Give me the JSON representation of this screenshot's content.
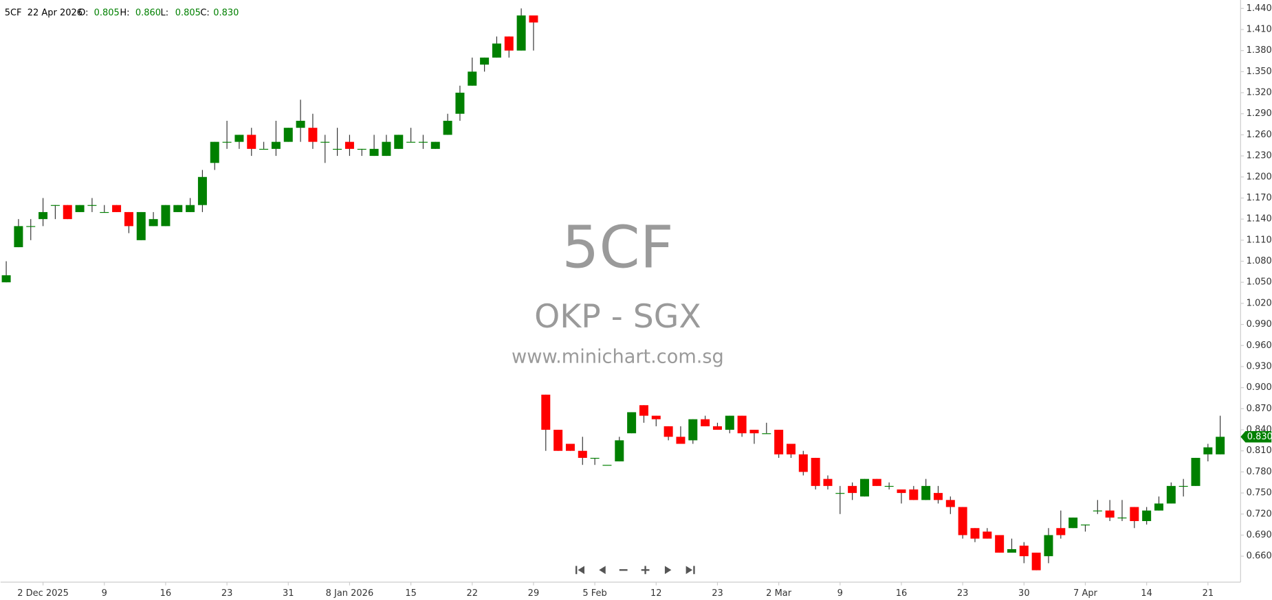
{
  "chart_data": {
    "type": "candlestick",
    "header": {
      "symbol": "5CF",
      "date": "22 Apr 2026",
      "open_label": "O:",
      "open": "0.805",
      "high_label": "H:",
      "high": "0.860",
      "low_label": "L:",
      "low": "0.805",
      "close_label": "C:",
      "close": "0.830"
    },
    "watermark": [
      "5CF",
      "OKP - SGX",
      "www.minichart.com.sg"
    ],
    "categories": [
      null,
      null,
      null,
      "2 Dec 2025",
      null,
      null,
      null,
      null,
      "9",
      null,
      null,
      null,
      null,
      "16",
      null,
      null,
      null,
      null,
      "23",
      null,
      null,
      null,
      null,
      "31",
      null,
      null,
      null,
      null,
      "8 Jan 2026",
      null,
      null,
      null,
      null,
      "15",
      null,
      null,
      null,
      null,
      "22",
      null,
      null,
      null,
      null,
      "29",
      null,
      null,
      null,
      null,
      "5 Feb",
      null,
      null,
      null,
      null,
      "12",
      null,
      null,
      null,
      null,
      "23",
      null,
      null,
      null,
      null,
      "2 Mar",
      null,
      null,
      null,
      null,
      "9",
      null,
      null,
      null,
      null,
      "16",
      null,
      null,
      null,
      null,
      "23",
      null,
      null,
      null,
      null,
      "30",
      null,
      null,
      null,
      null,
      "7 Apr",
      null,
      null,
      null,
      null,
      "14",
      null,
      null,
      null,
      null,
      "21",
      null
    ],
    "open": [
      1.05,
      1.1,
      1.13,
      1.14,
      1.16,
      1.16,
      1.15,
      1.16,
      1.15,
      1.16,
      1.15,
      1.11,
      1.13,
      1.13,
      1.15,
      1.15,
      1.16,
      1.22,
      1.25,
      1.25,
      1.26,
      1.24,
      1.24,
      1.25,
      1.27,
      1.27,
      1.25,
      1.24,
      1.25,
      1.24,
      1.23,
      1.23,
      1.24,
      1.25,
      1.25,
      1.24,
      1.26,
      1.29,
      1.33,
      1.36,
      1.37,
      1.4,
      1.38,
      1.43,
      0.89,
      0.84,
      0.82,
      0.81,
      0.8,
      0.79,
      0.795,
      0.835,
      0.875,
      0.86,
      0.845,
      0.83,
      0.825,
      0.855,
      0.845,
      0.84,
      0.86,
      0.84,
      0.835,
      0.84,
      0.82,
      0.805,
      0.8,
      0.77,
      0.75,
      0.76,
      0.745,
      0.77,
      0.76,
      0.755,
      0.755,
      0.74,
      0.75,
      0.74,
      0.73,
      0.7,
      0.695,
      0.69,
      0.665,
      0.675,
      0.665,
      0.66,
      0.7,
      0.7,
      0.705,
      0.725,
      0.725,
      0.715,
      0.73,
      0.71,
      0.725,
      0.735,
      0.76,
      0.76,
      0.805,
      0.805
    ],
    "high": [
      1.08,
      1.14,
      1.14,
      1.17,
      1.16,
      1.16,
      1.16,
      1.17,
      1.16,
      1.16,
      1.15,
      1.15,
      1.15,
      1.16,
      1.16,
      1.17,
      1.21,
      1.25,
      1.28,
      1.26,
      1.27,
      1.25,
      1.28,
      1.27,
      1.31,
      1.29,
      1.26,
      1.27,
      1.26,
      1.24,
      1.26,
      1.26,
      1.26,
      1.27,
      1.26,
      1.25,
      1.29,
      1.33,
      1.37,
      1.37,
      1.4,
      1.4,
      1.44,
      1.43,
      0.89,
      0.84,
      0.82,
      0.83,
      0.8,
      0.79,
      0.83,
      0.865,
      0.875,
      0.86,
      0.845,
      0.845,
      0.855,
      0.86,
      0.85,
      0.86,
      0.86,
      0.84,
      0.85,
      0.84,
      0.82,
      0.81,
      0.8,
      0.775,
      0.76,
      0.765,
      0.77,
      0.77,
      0.765,
      0.755,
      0.76,
      0.77,
      0.76,
      0.745,
      0.73,
      0.7,
      0.7,
      0.69,
      0.685,
      0.68,
      0.665,
      0.7,
      0.725,
      0.715,
      0.705,
      0.74,
      0.74,
      0.74,
      0.73,
      0.73,
      0.745,
      0.765,
      0.77,
      0.8,
      0.82,
      0.86
    ],
    "low": [
      1.05,
      1.1,
      1.11,
      1.13,
      1.14,
      1.14,
      1.15,
      1.15,
      1.15,
      1.15,
      1.12,
      1.11,
      1.13,
      1.13,
      1.15,
      1.15,
      1.15,
      1.21,
      1.24,
      1.24,
      1.23,
      1.24,
      1.23,
      1.25,
      1.25,
      1.24,
      1.22,
      1.23,
      1.23,
      1.23,
      1.23,
      1.23,
      1.24,
      1.25,
      1.24,
      1.24,
      1.26,
      1.28,
      1.33,
      1.35,
      1.37,
      1.37,
      1.38,
      1.38,
      0.81,
      0.81,
      0.81,
      0.79,
      0.79,
      0.79,
      0.795,
      0.835,
      0.85,
      0.845,
      0.825,
      0.82,
      0.82,
      0.845,
      0.84,
      0.835,
      0.83,
      0.82,
      0.835,
      0.8,
      0.8,
      0.775,
      0.755,
      0.755,
      0.72,
      0.74,
      0.745,
      0.76,
      0.755,
      0.735,
      0.74,
      0.74,
      0.735,
      0.72,
      0.685,
      0.68,
      0.685,
      0.665,
      0.665,
      0.65,
      0.64,
      0.65,
      0.685,
      0.7,
      0.695,
      0.72,
      0.71,
      0.71,
      0.7,
      0.705,
      0.725,
      0.735,
      0.745,
      0.76,
      0.795,
      0.805
    ],
    "close": [
      1.06,
      1.13,
      1.13,
      1.15,
      1.16,
      1.14,
      1.16,
      1.16,
      1.15,
      1.15,
      1.13,
      1.15,
      1.14,
      1.16,
      1.16,
      1.16,
      1.2,
      1.25,
      1.25,
      1.26,
      1.24,
      1.24,
      1.25,
      1.27,
      1.28,
      1.25,
      1.25,
      1.24,
      1.24,
      1.24,
      1.24,
      1.25,
      1.26,
      1.25,
      1.25,
      1.25,
      1.28,
      1.32,
      1.35,
      1.37,
      1.39,
      1.38,
      1.43,
      1.42,
      0.84,
      0.81,
      0.81,
      0.8,
      0.8,
      0.79,
      0.825,
      0.865,
      0.86,
      0.855,
      0.83,
      0.82,
      0.855,
      0.845,
      0.84,
      0.86,
      0.835,
      0.835,
      0.835,
      0.805,
      0.805,
      0.78,
      0.76,
      0.76,
      0.75,
      0.75,
      0.77,
      0.76,
      0.76,
      0.75,
      0.74,
      0.76,
      0.74,
      0.73,
      0.69,
      0.685,
      0.685,
      0.665,
      0.67,
      0.66,
      0.64,
      0.69,
      0.69,
      0.715,
      0.705,
      0.725,
      0.715,
      0.715,
      0.71,
      0.725,
      0.735,
      0.76,
      0.76,
      0.8,
      0.815,
      0.83
    ],
    "up_color": "#008000",
    "down_color": "#ff0000",
    "ylim": [
      0.623,
      1.452
    ],
    "yticks": [
      {
        "value": 0.66,
        "label": "0.660"
      },
      {
        "value": 0.69,
        "label": "0.690"
      },
      {
        "value": 0.72,
        "label": "0.720"
      },
      {
        "value": 0.75,
        "label": "0.750"
      },
      {
        "value": 0.78,
        "label": "0.780"
      },
      {
        "value": 0.81,
        "label": "0.810"
      },
      {
        "value": 0.84,
        "label": "0.840"
      },
      {
        "value": 0.87,
        "label": "0.870"
      },
      {
        "value": 0.9,
        "label": "0.900"
      },
      {
        "value": 0.93,
        "label": "0.930"
      },
      {
        "value": 0.96,
        "label": "0.960"
      },
      {
        "value": 0.99,
        "label": "0.990"
      },
      {
        "value": 1.02,
        "label": "1.020"
      },
      {
        "value": 1.05,
        "label": "1.050"
      },
      {
        "value": 1.08,
        "label": "1.080"
      },
      {
        "value": 1.11,
        "label": "1.110"
      },
      {
        "value": 1.14,
        "label": "1.140"
      },
      {
        "value": 1.17,
        "label": "1.170"
      },
      {
        "value": 1.2,
        "label": "1.200"
      },
      {
        "value": 1.23,
        "label": "1.230"
      },
      {
        "value": 1.26,
        "label": "1.260"
      },
      {
        "value": 1.29,
        "label": "1.290"
      },
      {
        "value": 1.32,
        "label": "1.320"
      },
      {
        "value": 1.35,
        "label": "1.350"
      },
      {
        "value": 1.38,
        "label": "1.380"
      },
      {
        "value": 1.41,
        "label": "1.410"
      },
      {
        "value": 1.44,
        "label": "1.440"
      }
    ]
  }
}
